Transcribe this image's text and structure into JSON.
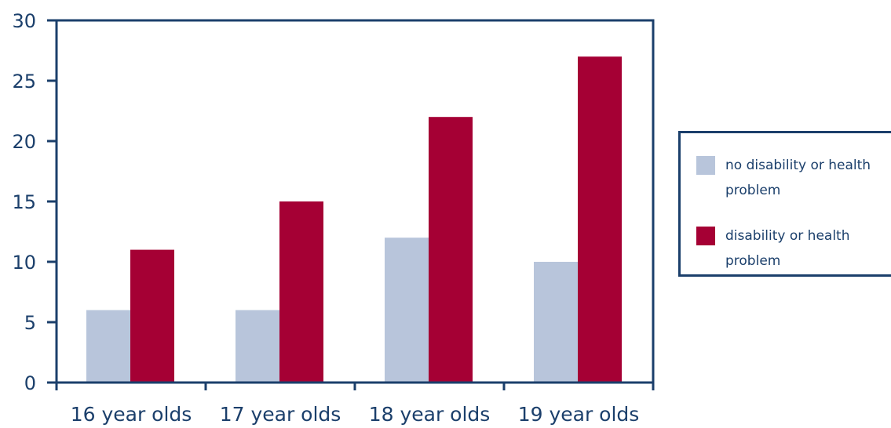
{
  "chart_data": {
    "type": "bar",
    "categories": [
      "16 year olds",
      "17 year olds",
      "18 year olds",
      "19 year olds"
    ],
    "series": [
      {
        "name": "no disability or health problem",
        "values": [
          6,
          6,
          12,
          10
        ],
        "color": "#b8c5db"
      },
      {
        "name": "disability or health problem",
        "values": [
          11,
          15,
          22,
          27
        ],
        "color": "#a50034"
      }
    ],
    "ylim": [
      0,
      30
    ],
    "yticks": [
      0,
      5,
      10,
      15,
      20,
      25,
      30
    ],
    "title": "",
    "xlabel": "",
    "ylabel": "",
    "grid": false,
    "legend_position": "right",
    "axis_color": "#1b3f6b"
  }
}
